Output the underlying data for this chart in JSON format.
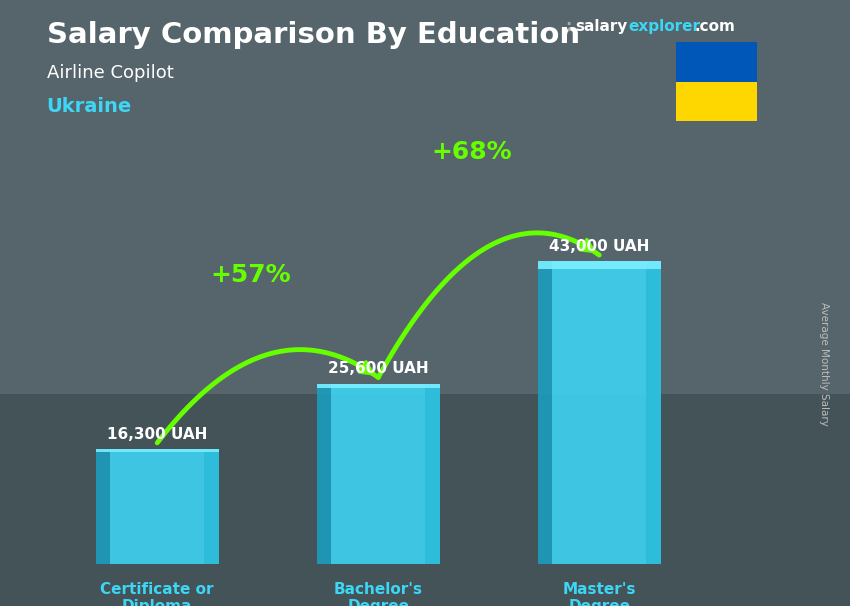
{
  "title": "Salary Comparison By Education",
  "subtitle": "Airline Copilot",
  "country": "Ukraine",
  "categories": [
    "Certificate or\nDiploma",
    "Bachelor's\nDegree",
    "Master's\nDegree"
  ],
  "values": [
    16300,
    25600,
    43000
  ],
  "value_labels": [
    "16,300 UAH",
    "25,600 UAH",
    "43,000 UAH"
  ],
  "pct_labels": [
    "+57%",
    "+68%"
  ],
  "bar_color_main": "#3dd6f5",
  "bar_color_left": "#1a9ec0",
  "bar_color_right": "#2bbbd8",
  "bar_color_top": "#7aeeff",
  "background_color": "#5a6a70",
  "title_color": "#ffffff",
  "subtitle_color": "#ffffff",
  "country_color": "#3dd6f5",
  "value_label_color": "#ffffff",
  "pct_color": "#66ff00",
  "category_color": "#3dd6f5",
  "arrow_color": "#66ff00",
  "ylabel": "Average Monthly Salary",
  "brand_salary": "salary",
  "brand_explorer": "explorer",
  "brand_com": ".com",
  "brand_colon": ":",
  "ukraine_flag_blue": "#0057b7",
  "ukraine_flag_yellow": "#ffd700",
  "ylim": [
    0,
    56000
  ],
  "bar_width": 0.38,
  "bar_positions": [
    0.18,
    0.5,
    0.82
  ],
  "bar_bottoms_norm": [
    0.0
  ],
  "value_label_offsets": [
    0.015,
    0.015,
    0.015
  ]
}
